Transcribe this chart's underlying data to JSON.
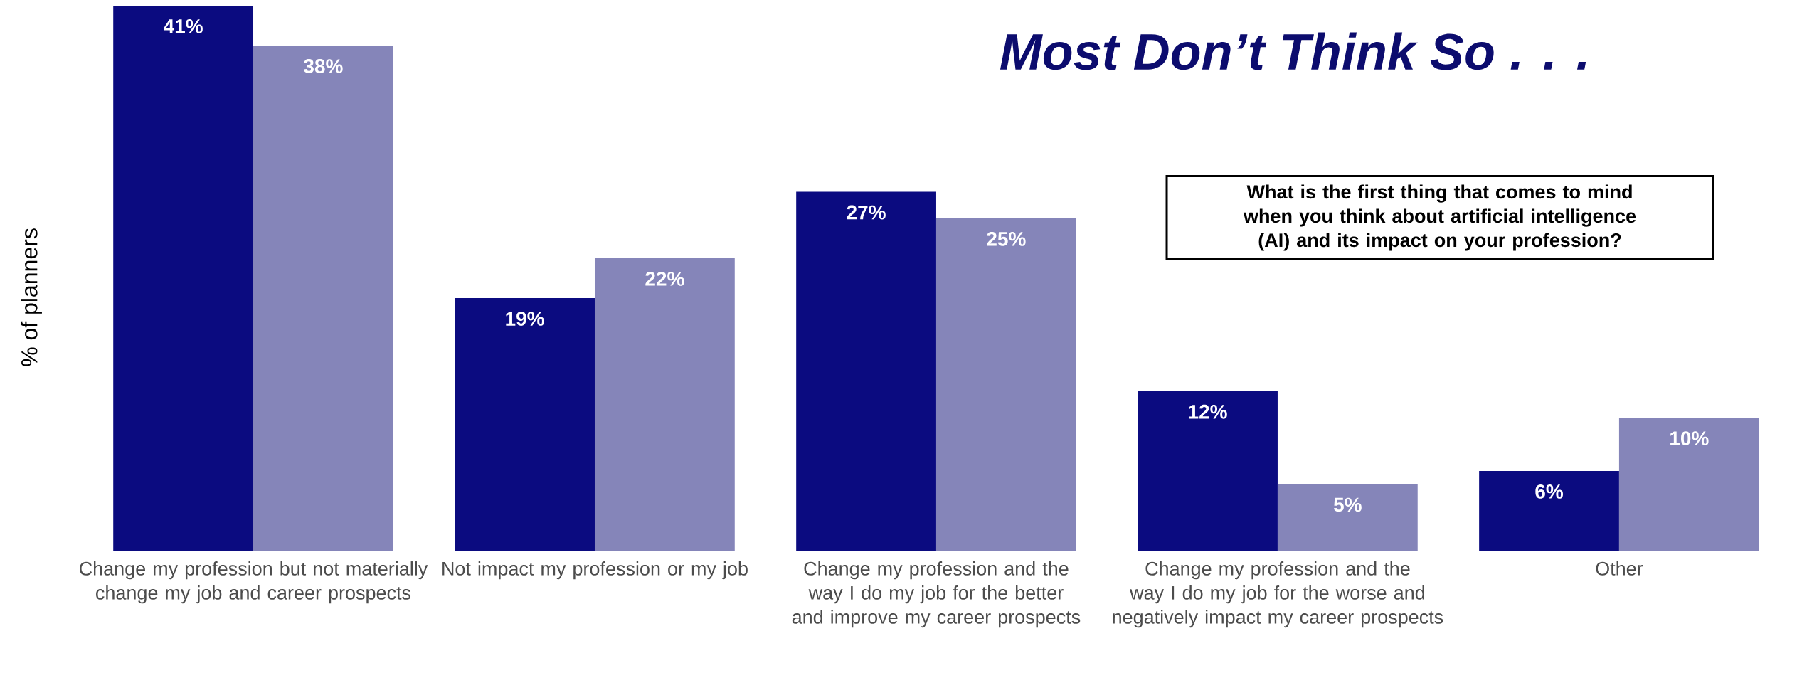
{
  "chart_data": {
    "type": "bar",
    "title": "Most Don’t Think So . . .",
    "ylabel": "% of planners",
    "annotations": [
      "What is the first thing that comes to mind when you think about artificial intelligence (AI) and its impact on your profession?"
    ],
    "categories": [
      "Change my profession but not materially change my job and career prospects",
      "Not impact my profession or my job",
      "Change my profession and the way I do my job for the better and improve my career prospects",
      "Change my profession and the way I do my job for the worse and negatively impact my career prospects",
      "Other"
    ],
    "tick_labels": "x",
    "series": [
      {
        "color": "#0b0b80",
        "values": [
          41,
          19,
          27,
          12,
          6
        ],
        "value_labels": [
          "41%",
          "19%",
          "27%",
          "12%",
          "6%"
        ]
      },
      {
        "color": "#8585b9",
        "values": [
          38,
          22,
          25,
          5,
          10
        ],
        "value_labels": [
          "38%",
          "22%",
          "25%",
          "5%",
          "10%"
        ]
      }
    ]
  }
}
